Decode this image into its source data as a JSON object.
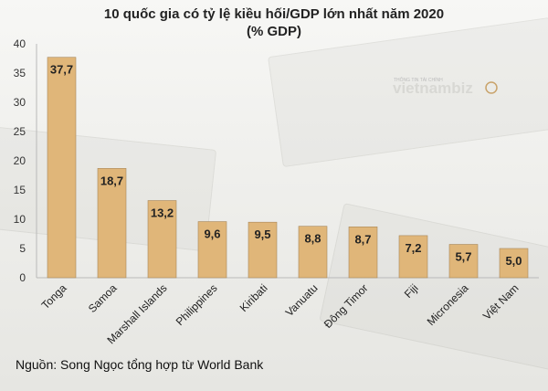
{
  "colors": {
    "bar": "#e0b679",
    "bar_stroke": "#a7875a",
    "axis": "#b9b9b9",
    "logo": "#c9a36b"
  },
  "chart_data": {
    "type": "bar",
    "title": "10 quốc gia có tỷ lệ kiều hối/GDP lớn nhất năm 2020",
    "subtitle": "(% GDP)",
    "categories": [
      "Tonga",
      "Samoa",
      "Marshall Islands",
      "Philippines",
      "Kiribati",
      "Vanuatu",
      "Đông Timor",
      "Fiji",
      "Micronesia",
      "Việt Nam"
    ],
    "values": [
      37.7,
      18.7,
      13.2,
      9.6,
      9.5,
      8.8,
      8.7,
      7.2,
      5.7,
      5.0
    ],
    "data_labels": [
      "37,7",
      "18,7",
      "13,2",
      "9,6",
      "9,5",
      "8,8",
      "8,7",
      "7,2",
      "5,7",
      "5,0"
    ],
    "ylim": [
      0,
      40
    ],
    "yticks": [
      0,
      5,
      10,
      15,
      20,
      25,
      30,
      35,
      40
    ],
    "xlabel": "",
    "ylabel": "",
    "grid": false,
    "legend": "none"
  },
  "source_text": "Nguồn: Song Ngọc tổng hợp từ World Bank",
  "watermark": {
    "text": "vietnambiz",
    "tagline": "THÔNG TIN TÀI CHÍNH"
  }
}
